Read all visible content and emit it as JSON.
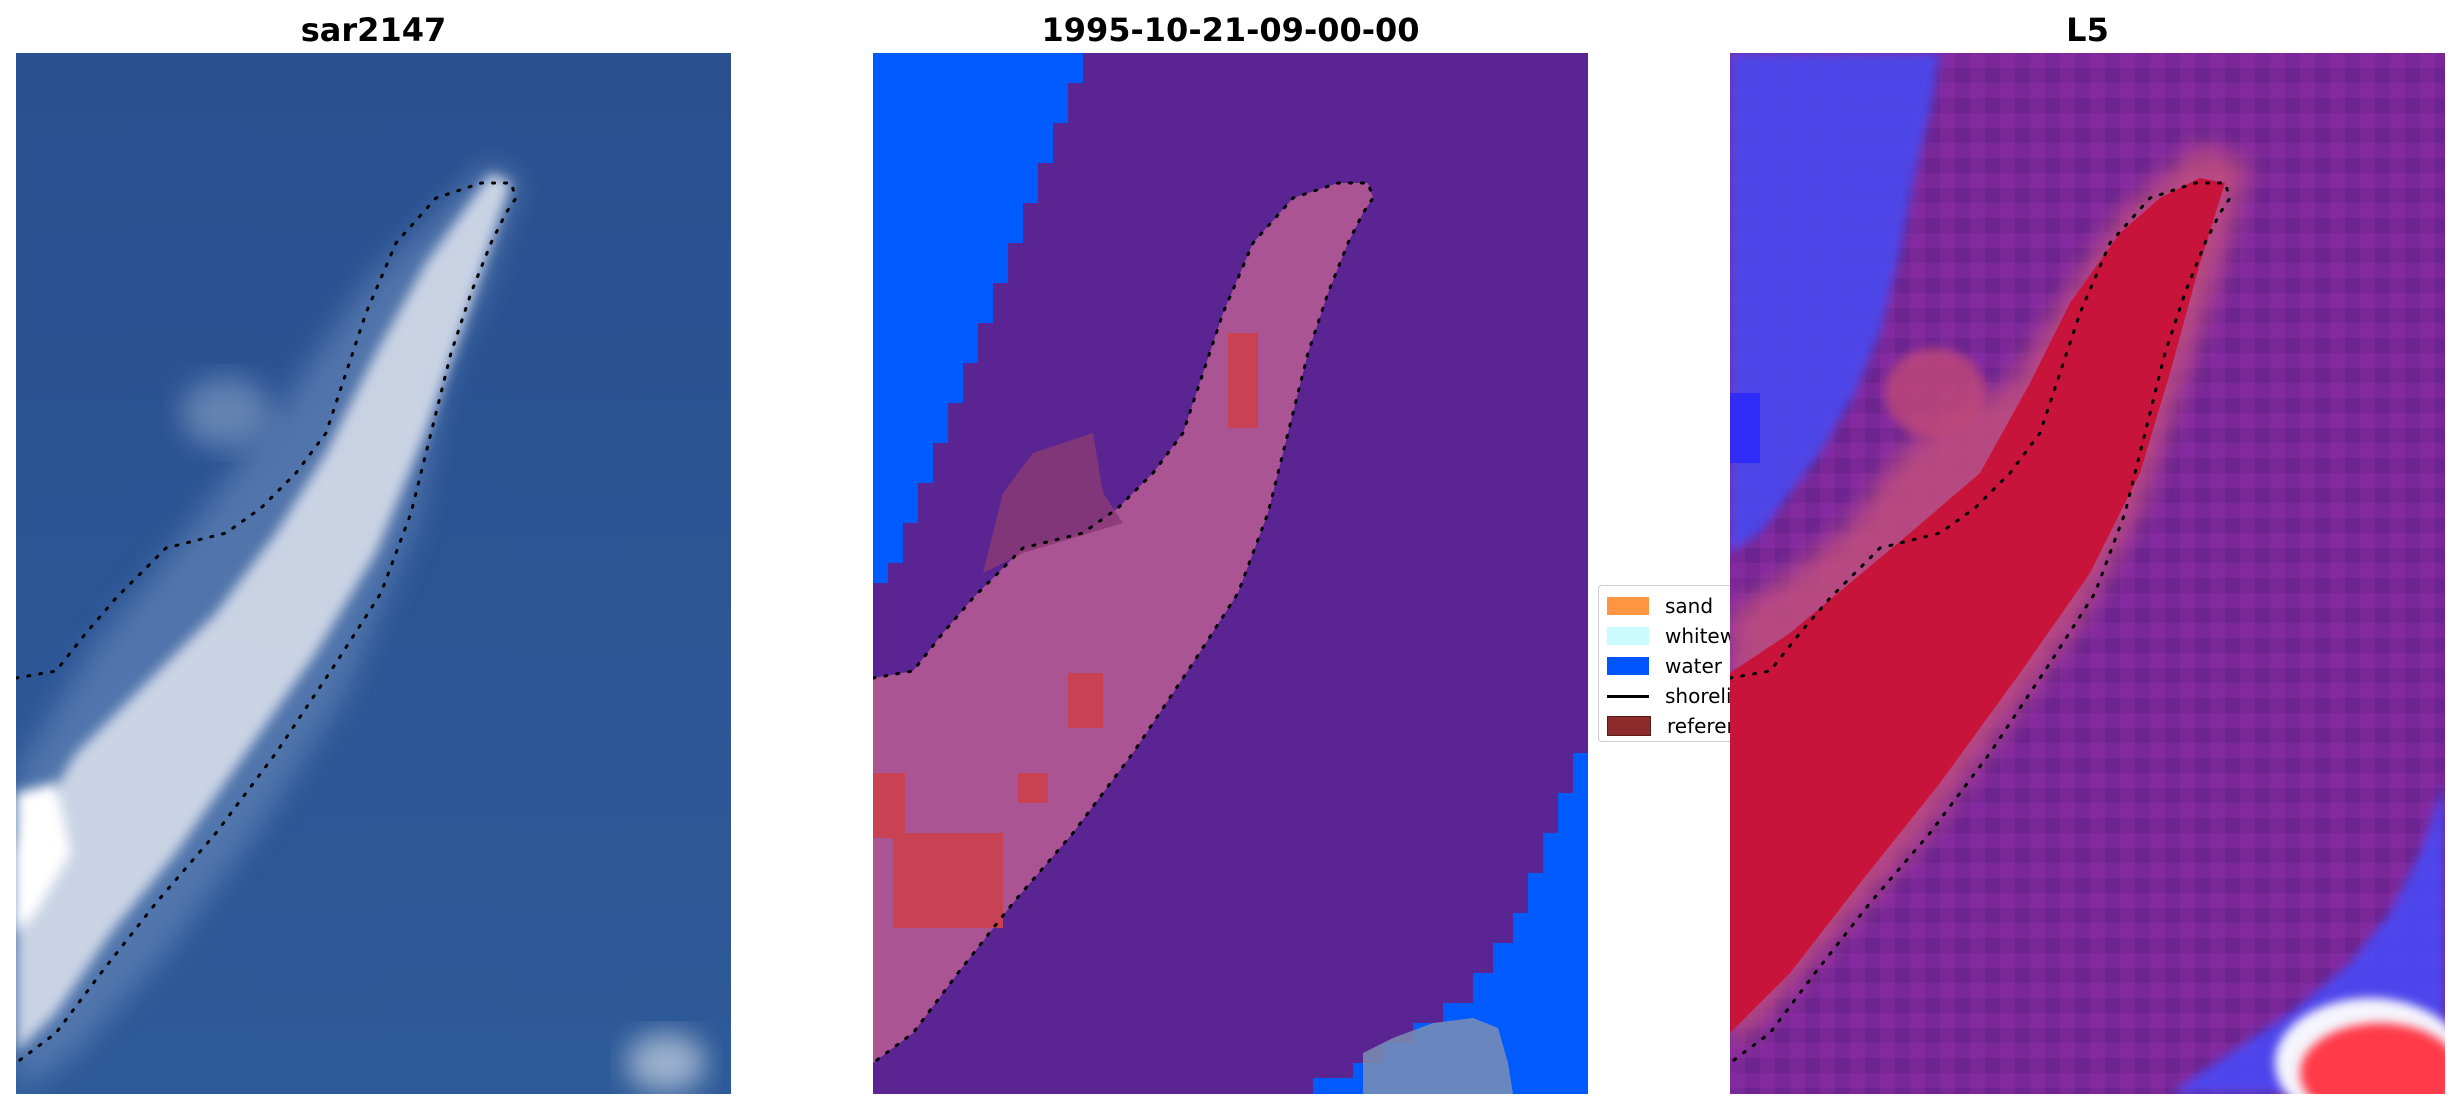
{
  "panels": [
    {
      "title": "sar2147"
    },
    {
      "title": "1995-10-21-09-00-00"
    },
    {
      "title": "L5"
    }
  ],
  "legend": {
    "items": [
      {
        "label": "sand",
        "color": "#ff9441",
        "kind": "patch"
      },
      {
        "label": "whitewater",
        "color": "#c9fbff",
        "kind": "patch"
      },
      {
        "label": "water",
        "color": "#0055ff",
        "kind": "patch"
      },
      {
        "label": "shoreline",
        "color": "#000000",
        "kind": "line"
      },
      {
        "label": "reference",
        "color": "#8b2b2b",
        "kind": "patch"
      }
    ]
  },
  "colors": {
    "rgb_water": "#2e5592",
    "class_water": "#005bff",
    "class_other": "#5a2493",
    "prob_low": "#3b3bff",
    "prob_mid": "#7a2898",
    "prob_high": "#c8143a"
  }
}
